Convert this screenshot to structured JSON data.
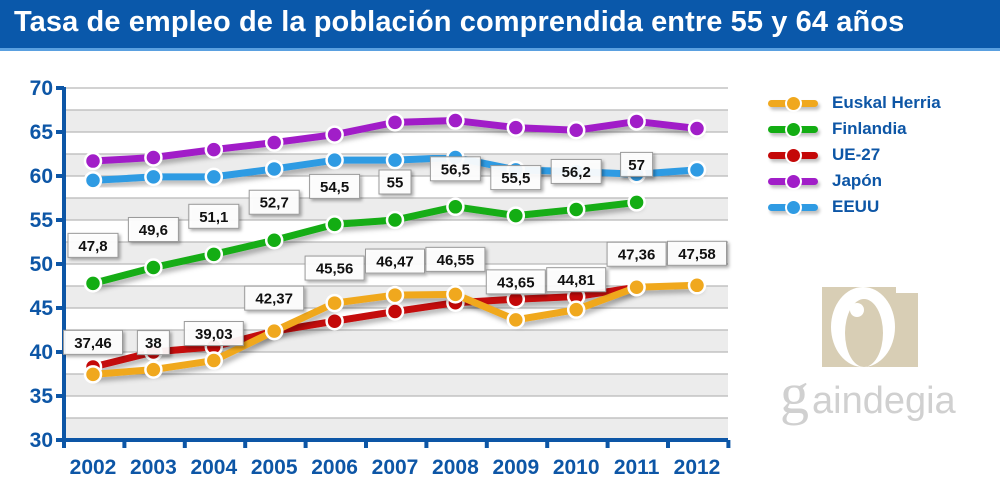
{
  "header": {
    "title": "Tasa de empleo de la población comprendida entre 55 y 64 años"
  },
  "legend": {
    "items": [
      {
        "label": "Euskal Herria",
        "color": "#f0a81e"
      },
      {
        "label": "Finlandia",
        "color": "#13ad13"
      },
      {
        "label": "UE-27",
        "color": "#c40808"
      },
      {
        "label": "Japón",
        "color": "#a11ec8"
      },
      {
        "label": "EEUU",
        "color": "#2f9be3"
      }
    ]
  },
  "logo": {
    "text": "aindegia",
    "brand_color": "#d8ceb5"
  },
  "chart_data": {
    "type": "line",
    "title": "Tasa de empleo de la población comprendida entre 55 y 64 años",
    "xlabel": "",
    "ylabel": "",
    "x": [
      "2002",
      "2003",
      "2004",
      "2005",
      "2006",
      "2007",
      "2008",
      "2009",
      "2010",
      "2011",
      "2012"
    ],
    "ylim": [
      30,
      70
    ],
    "yticks": [
      30,
      35,
      40,
      45,
      50,
      55,
      60,
      65,
      70
    ],
    "grid": true,
    "legend_position": "right",
    "series": [
      {
        "name": "Japón",
        "color": "#a11ec8",
        "values": [
          61.7,
          62.1,
          63.0,
          63.8,
          64.7,
          66.1,
          66.3,
          65.5,
          65.2,
          66.2,
          65.4
        ],
        "labels": [
          null,
          null,
          null,
          null,
          null,
          null,
          null,
          null,
          null,
          null,
          null
        ]
      },
      {
        "name": "EEUU",
        "color": "#2f9be3",
        "values": [
          59.5,
          59.9,
          59.9,
          60.8,
          61.8,
          61.8,
          62.1,
          60.7,
          60.5,
          60.2,
          60.7
        ],
        "labels": [
          null,
          null,
          null,
          null,
          null,
          null,
          null,
          null,
          null,
          null,
          null
        ]
      },
      {
        "name": "Finlandia",
        "color": "#13ad13",
        "values": [
          47.8,
          49.6,
          51.1,
          52.7,
          54.5,
          55.0,
          56.5,
          55.5,
          56.2,
          57.0,
          null
        ],
        "labels": [
          "47,8",
          "49,6",
          "51,1",
          "52,7",
          "54,5",
          "55",
          "56,5",
          "55,5",
          "56,2",
          "57",
          null
        ]
      },
      {
        "name": "UE-27",
        "color": "#c40808",
        "values": [
          38.3,
          40.0,
          40.6,
          42.37,
          43.5,
          44.6,
          45.6,
          46.0,
          46.3,
          47.36,
          null
        ],
        "labels": [
          null,
          null,
          null,
          null,
          null,
          null,
          null,
          null,
          null,
          null,
          null
        ]
      },
      {
        "name": "Euskal Herria",
        "color": "#f0a81e",
        "values": [
          37.46,
          38.0,
          39.03,
          42.37,
          45.56,
          46.47,
          46.55,
          43.65,
          44.81,
          47.36,
          47.58
        ],
        "labels": [
          "37,46",
          "38",
          "39,03",
          "42,37",
          "45,56",
          "46,47",
          "46,55",
          "43,65",
          "44,81",
          "47,36",
          "47,58"
        ]
      }
    ]
  }
}
